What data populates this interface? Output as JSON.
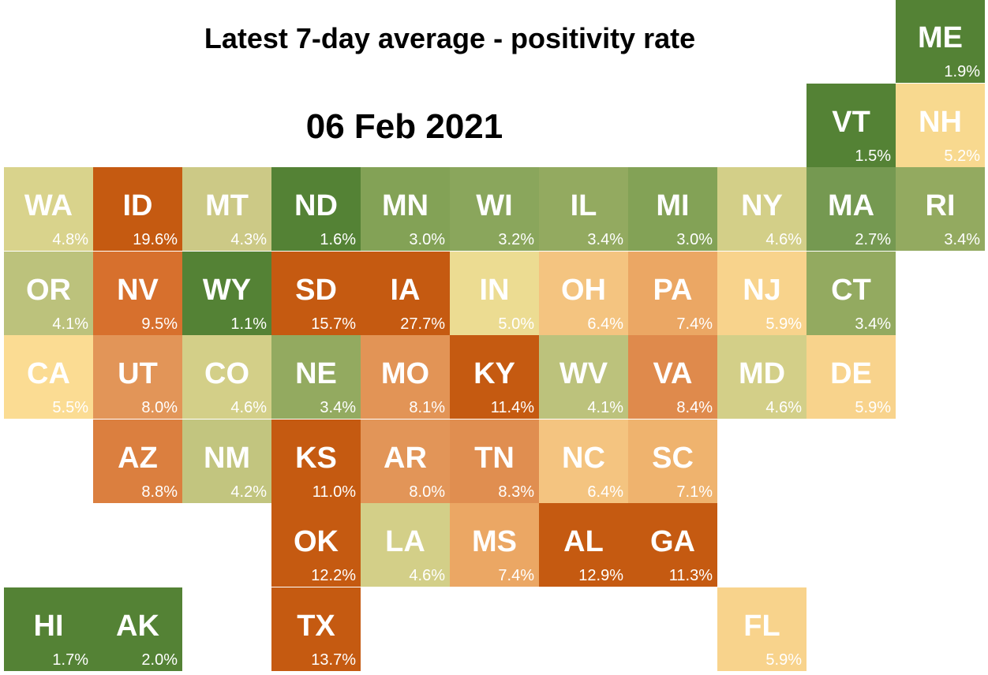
{
  "title": "Latest 7-day average - positivity rate",
  "date": "06 Feb 2021",
  "states": [
    {
      "abbr": "ME",
      "value": "1.9%",
      "col": 10,
      "row": -2,
      "color": "#548235"
    },
    {
      "abbr": "VT",
      "value": "1.5%",
      "col": 9,
      "row": -1,
      "color": "#548235"
    },
    {
      "abbr": "NH",
      "value": "5.2%",
      "col": 10,
      "row": -1,
      "color": "#f8d98f"
    },
    {
      "abbr": "WA",
      "value": "4.8%",
      "col": 0,
      "row": 0,
      "color": "#d9d38c"
    },
    {
      "abbr": "ID",
      "value": "19.6%",
      "col": 1,
      "row": 0,
      "color": "#c55a11"
    },
    {
      "abbr": "MT",
      "value": "4.3%",
      "col": 2,
      "row": 0,
      "color": "#ccc986"
    },
    {
      "abbr": "ND",
      "value": "1.6%",
      "col": 3,
      "row": 0,
      "color": "#548235"
    },
    {
      "abbr": "MN",
      "value": "3.0%",
      "col": 4,
      "row": 0,
      "color": "#83a256"
    },
    {
      "abbr": "WI",
      "value": "3.2%",
      "col": 5,
      "row": 0,
      "color": "#8aa65c"
    },
    {
      "abbr": "IL",
      "value": "3.4%",
      "col": 6,
      "row": 0,
      "color": "#93aa60"
    },
    {
      "abbr": "MI",
      "value": "3.0%",
      "col": 7,
      "row": 0,
      "color": "#83a256"
    },
    {
      "abbr": "NY",
      "value": "4.6%",
      "col": 8,
      "row": 0,
      "color": "#d3cf88"
    },
    {
      "abbr": "MA",
      "value": "2.7%",
      "col": 9,
      "row": 0,
      "color": "#759951"
    },
    {
      "abbr": "RI",
      "value": "3.4%",
      "col": 10,
      "row": 0,
      "color": "#93aa60"
    },
    {
      "abbr": "OR",
      "value": "4.1%",
      "col": 0,
      "row": 1,
      "color": "#bcc27c"
    },
    {
      "abbr": "NV",
      "value": "9.5%",
      "col": 1,
      "row": 1,
      "color": "#d7702d"
    },
    {
      "abbr": "WY",
      "value": "1.1%",
      "col": 2,
      "row": 1,
      "color": "#548235"
    },
    {
      "abbr": "SD",
      "value": "15.7%",
      "col": 3,
      "row": 1,
      "color": "#c55a11"
    },
    {
      "abbr": "IA",
      "value": "27.7%",
      "col": 4,
      "row": 1,
      "color": "#c55a11"
    },
    {
      "abbr": "IN",
      "value": "5.0%",
      "col": 5,
      "row": 1,
      "color": "#ecdc92"
    },
    {
      "abbr": "OH",
      "value": "6.4%",
      "col": 6,
      "row": 1,
      "color": "#f4c480"
    },
    {
      "abbr": "PA",
      "value": "7.4%",
      "col": 7,
      "row": 1,
      "color": "#eba764"
    },
    {
      "abbr": "NJ",
      "value": "5.9%",
      "col": 8,
      "row": 1,
      "color": "#f8d38c"
    },
    {
      "abbr": "CT",
      "value": "3.4%",
      "col": 9,
      "row": 1,
      "color": "#93aa60"
    },
    {
      "abbr": "CA",
      "value": "5.5%",
      "col": 0,
      "row": 2,
      "color": "#fbdc93"
    },
    {
      "abbr": "UT",
      "value": "8.0%",
      "col": 1,
      "row": 2,
      "color": "#e29558"
    },
    {
      "abbr": "CO",
      "value": "4.6%",
      "col": 2,
      "row": 2,
      "color": "#d3cf88"
    },
    {
      "abbr": "NE",
      "value": "3.4%",
      "col": 3,
      "row": 2,
      "color": "#93aa60"
    },
    {
      "abbr": "MO",
      "value": "8.1%",
      "col": 4,
      "row": 2,
      "color": "#e29456"
    },
    {
      "abbr": "KY",
      "value": "11.4%",
      "col": 5,
      "row": 2,
      "color": "#c55a11"
    },
    {
      "abbr": "WV",
      "value": "4.1%",
      "col": 6,
      "row": 2,
      "color": "#bcc27c"
    },
    {
      "abbr": "VA",
      "value": "8.4%",
      "col": 7,
      "row": 2,
      "color": "#df8a4c"
    },
    {
      "abbr": "MD",
      "value": "4.6%",
      "col": 8,
      "row": 2,
      "color": "#d3cf88"
    },
    {
      "abbr": "DE",
      "value": "5.9%",
      "col": 9,
      "row": 2,
      "color": "#f8d38c"
    },
    {
      "abbr": "AZ",
      "value": "8.8%",
      "col": 1,
      "row": 3,
      "color": "#db7f3f"
    },
    {
      "abbr": "NM",
      "value": "4.2%",
      "col": 2,
      "row": 3,
      "color": "#c2c57f"
    },
    {
      "abbr": "KS",
      "value": "11.0%",
      "col": 3,
      "row": 3,
      "color": "#c55a11"
    },
    {
      "abbr": "AR",
      "value": "8.0%",
      "col": 4,
      "row": 3,
      "color": "#e29558"
    },
    {
      "abbr": "TN",
      "value": "8.3%",
      "col": 5,
      "row": 3,
      "color": "#e08e50"
    },
    {
      "abbr": "NC",
      "value": "6.4%",
      "col": 6,
      "row": 3,
      "color": "#f4c480"
    },
    {
      "abbr": "SC",
      "value": "7.1%",
      "col": 7,
      "row": 3,
      "color": "#efb36e"
    },
    {
      "abbr": "OK",
      "value": "12.2%",
      "col": 3,
      "row": 4,
      "color": "#c55a11"
    },
    {
      "abbr": "LA",
      "value": "4.6%",
      "col": 4,
      "row": 4,
      "color": "#d3cf88"
    },
    {
      "abbr": "MS",
      "value": "7.4%",
      "col": 5,
      "row": 4,
      "color": "#eba764"
    },
    {
      "abbr": "AL",
      "value": "12.9%",
      "col": 6,
      "row": 4,
      "color": "#c55a11"
    },
    {
      "abbr": "GA",
      "value": "11.3%",
      "col": 7,
      "row": 4,
      "color": "#c55a11"
    },
    {
      "abbr": "HI",
      "value": "1.7%",
      "col": 0,
      "row": 5,
      "color": "#548235"
    },
    {
      "abbr": "AK",
      "value": "2.0%",
      "col": 1,
      "row": 5,
      "color": "#548235"
    },
    {
      "abbr": "TX",
      "value": "13.7%",
      "col": 3,
      "row": 5,
      "color": "#c55a11"
    },
    {
      "abbr": "FL",
      "value": "5.9%",
      "col": 8,
      "row": 5,
      "color": "#f8d38c"
    }
  ]
}
